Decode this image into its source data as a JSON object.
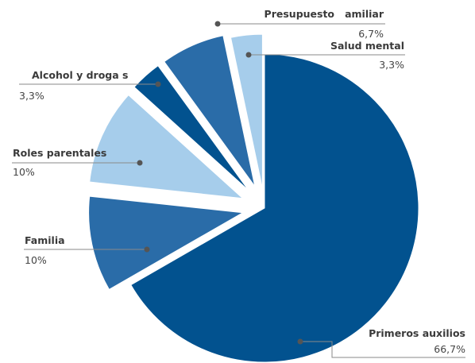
{
  "chart_data": {
    "type": "pie",
    "title": "",
    "slices": [
      {
        "label": "Primeros auxilios",
        "value_label": "66,7%",
        "value": 66.7,
        "color": "#02528f"
      },
      {
        "label": "Familia",
        "value_label": "10%",
        "value": 10,
        "color": "#2a6ca8"
      },
      {
        "label": "Roles parentales",
        "value_label": "10%",
        "value": 10,
        "color": "#a6cdeb"
      },
      {
        "label": "Alcohol y droga s",
        "value_label": "3,3%",
        "value": 3.3,
        "color": "#02528f"
      },
      {
        "label": "Presupuesto   amiliar",
        "value_label": "6,7%",
        "value": 6.7,
        "color": "#2a6ca8"
      },
      {
        "label": "Salud mental",
        "value_label": "3,3%",
        "value": 3.3,
        "color": "#a6cdeb"
      }
    ]
  }
}
